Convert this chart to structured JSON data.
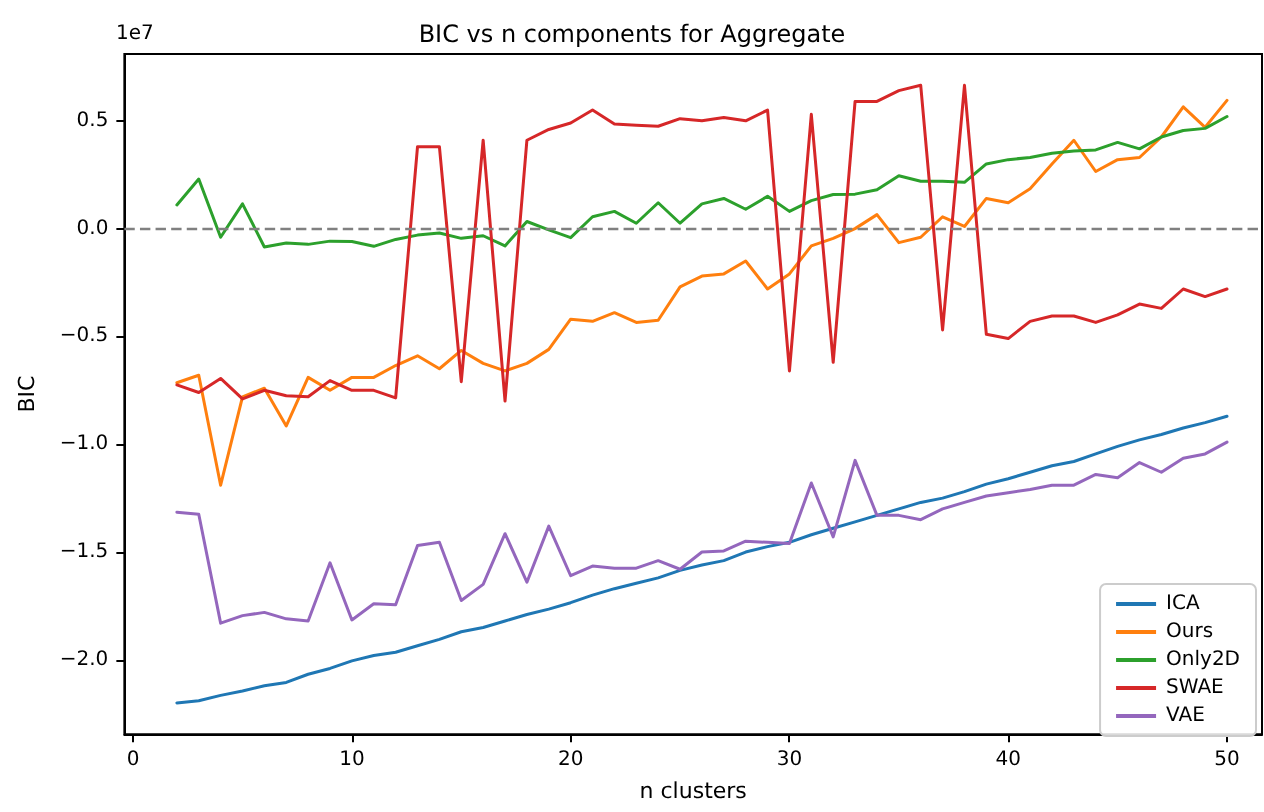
{
  "chart_data": {
    "type": "line",
    "title": "BIC vs n components for Aggregate",
    "xlabel": "n clusters",
    "ylabel": "BIC",
    "annotations": [
      "1e7"
    ],
    "x": [
      2,
      3,
      4,
      5,
      6,
      7,
      8,
      9,
      10,
      11,
      12,
      13,
      14,
      15,
      16,
      17,
      18,
      19,
      20,
      21,
      22,
      23,
      24,
      25,
      26,
      27,
      28,
      29,
      30,
      31,
      32,
      33,
      34,
      35,
      36,
      37,
      38,
      39,
      40,
      41,
      42,
      43,
      44,
      45,
      46,
      47,
      48,
      49,
      50
    ],
    "series": [
      {
        "name": "ICA",
        "color": "#1f77b4",
        "values": [
          -2.2,
          -2.19,
          -2.165,
          -2.145,
          -2.12,
          -2.105,
          -2.067,
          -2.04,
          -2.005,
          -1.98,
          -1.965,
          -1.935,
          -1.905,
          -1.87,
          -1.85,
          -1.82,
          -1.79,
          -1.765,
          -1.735,
          -1.7,
          -1.67,
          -1.645,
          -1.62,
          -1.585,
          -1.56,
          -1.54,
          -1.5,
          -1.475,
          -1.455,
          -1.42,
          -1.39,
          -1.36,
          -1.33,
          -1.3,
          -1.27,
          -1.25,
          -1.22,
          -1.185,
          -1.16,
          -1.13,
          -1.1,
          -1.08,
          -1.045,
          -1.01,
          -0.98,
          -0.955,
          -0.925,
          -0.9,
          -0.87
        ]
      },
      {
        "name": "Ours",
        "color": "#ff7f0e",
        "values": [
          -0.715,
          -0.68,
          -1.19,
          -0.78,
          -0.74,
          -0.915,
          -0.69,
          -0.75,
          -0.69,
          -0.69,
          -0.635,
          -0.59,
          -0.65,
          -0.565,
          -0.625,
          -0.66,
          -0.625,
          -0.56,
          -0.42,
          -0.43,
          -0.39,
          -0.435,
          -0.425,
          -0.27,
          -0.22,
          -0.21,
          -0.15,
          -0.28,
          -0.21,
          -0.08,
          -0.045,
          0.0,
          0.065,
          -0.065,
          -0.04,
          0.055,
          0.01,
          0.14,
          0.12,
          0.185,
          0.3,
          0.41,
          0.265,
          0.32,
          0.33,
          0.425,
          0.565,
          0.47,
          0.595
        ]
      },
      {
        "name": "Only2D",
        "color": "#2ca02c",
        "values": [
          0.11,
          0.23,
          -0.04,
          0.115,
          -0.085,
          -0.067,
          -0.073,
          -0.058,
          -0.06,
          -0.082,
          -0.05,
          -0.03,
          -0.02,
          -0.045,
          -0.033,
          -0.08,
          0.033,
          -0.006,
          -0.042,
          0.055,
          0.08,
          0.025,
          0.12,
          0.025,
          0.115,
          0.14,
          0.09,
          0.15,
          0.08,
          0.13,
          0.158,
          0.16,
          0.18,
          0.245,
          0.22,
          0.22,
          0.215,
          0.3,
          0.32,
          0.33,
          0.35,
          0.36,
          0.365,
          0.4,
          0.37,
          0.425,
          0.455,
          0.465,
          0.52
        ]
      },
      {
        "name": "SWAE",
        "color": "#d62728",
        "values": [
          -0.725,
          -0.76,
          -0.695,
          -0.79,
          -0.75,
          -0.775,
          -0.78,
          -0.705,
          -0.75,
          -0.75,
          -0.785,
          0.38,
          0.38,
          -0.71,
          0.41,
          -0.8,
          0.41,
          0.46,
          0.49,
          0.55,
          0.485,
          0.48,
          0.475,
          0.51,
          0.5,
          0.515,
          0.5,
          0.55,
          -0.66,
          0.53,
          -0.62,
          0.59,
          0.59,
          0.64,
          0.665,
          -0.47,
          0.665,
          -0.49,
          -0.51,
          -0.43,
          -0.405,
          -0.405,
          -0.435,
          -0.4,
          -0.35,
          -0.37,
          -0.28,
          -0.315,
          -0.28
        ]
      },
      {
        "name": "VAE",
        "color": "#9467bd",
        "values": [
          -1.315,
          -1.325,
          -1.83,
          -1.795,
          -1.78,
          -1.81,
          -1.82,
          -1.55,
          -1.815,
          -1.74,
          -1.745,
          -1.47,
          -1.455,
          -1.725,
          -1.65,
          -1.415,
          -1.64,
          -1.38,
          -1.61,
          -1.565,
          -1.575,
          -1.575,
          -1.54,
          -1.58,
          -1.5,
          -1.495,
          -1.45,
          -1.455,
          -1.46,
          -1.18,
          -1.43,
          -1.075,
          -1.33,
          -1.33,
          -1.35,
          -1.3,
          -1.27,
          -1.24,
          -1.225,
          -1.21,
          -1.19,
          -1.19,
          -1.14,
          -1.155,
          -1.085,
          -1.13,
          -1.065,
          -1.045,
          -0.99
        ]
      }
    ],
    "xlim": [
      -0.4,
      51.6
    ],
    "xticks": [
      0,
      10,
      20,
      30,
      40,
      50
    ],
    "ylim": [
      -2.345,
      0.81
    ],
    "yticks": [
      {
        "value": -2,
        "label": "−2.0"
      },
      {
        "value": -1.5,
        "label": "−1.5"
      },
      {
        "value": -1,
        "label": "−1.0"
      },
      {
        "value": -0.5,
        "label": "−0.5"
      },
      {
        "value": 0,
        "label": "0.0"
      },
      {
        "value": 0.5,
        "label": "0.5"
      }
    ],
    "ref_lines": [
      {
        "axis": "y",
        "value": 0,
        "label": null,
        "color": "#808080",
        "line_style": "dashed"
      }
    ],
    "legend": "bottom right",
    "grid": false,
    "marker": "none",
    "line_style": "solid"
  }
}
